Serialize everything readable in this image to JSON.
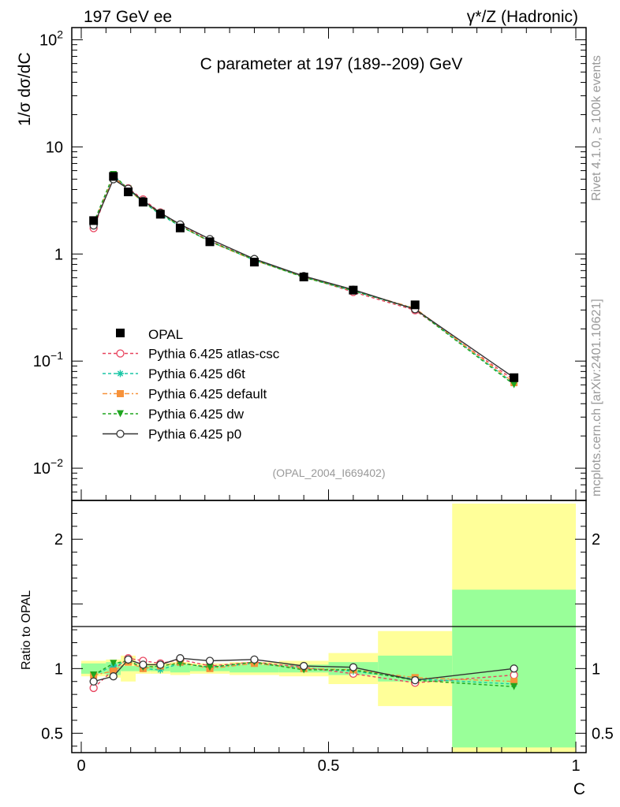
{
  "header": {
    "left": "197 GeV ee",
    "right": "γ*/Z (Hadronic)"
  },
  "side": {
    "rivet": "Rivet 4.1.0, ≥ 100k events",
    "mcplots": "mcplots.cern.ch [arXiv:2401.10621]"
  },
  "chart_data": {
    "type": "line",
    "title": "C parameter at 197 (189--209) GeV",
    "ylabel": "1/σ  dσ/dC",
    "xlabel": "C",
    "ratio_ylabel": "Ratio to OPAL",
    "watermark": "(OPAL_2004_I669402)",
    "xlim": [
      0,
      1
    ],
    "ylim": [
      0.005,
      130
    ],
    "yscale": "log",
    "ratio_ylim": [
      0.35,
      2.3
    ],
    "main_yticks": [
      {
        "label": "10",
        "sup": "2",
        "value": 100
      },
      {
        "label": "10",
        "sup": "",
        "value": 10
      },
      {
        "label": "1",
        "sup": "",
        "value": 1
      },
      {
        "label": "10",
        "sup": "−1",
        "value": 0.1
      },
      {
        "label": "10",
        "sup": "−2",
        "value": 0.01
      }
    ],
    "ratio_yticks": [
      {
        "label": "2",
        "value": 2
      },
      {
        "label": "1",
        "value": 1
      },
      {
        "label": "0.5",
        "value": 0.5
      }
    ],
    "xticks": [
      {
        "label": "0",
        "value": 0
      },
      {
        "label": "0.5",
        "value": 0.5
      },
      {
        "label": "1",
        "value": 1
      }
    ],
    "x": [
      0.025,
      0.065,
      0.095,
      0.125,
      0.16,
      0.2,
      0.26,
      0.35,
      0.45,
      0.55,
      0.675,
      0.875
    ],
    "bin_edges": [
      0.0,
      0.05,
      0.08,
      0.11,
      0.14,
      0.18,
      0.22,
      0.3,
      0.4,
      0.5,
      0.6,
      0.75,
      1.0
    ],
    "data": {
      "name": "OPAL",
      "values": [
        2.05,
        5.3,
        3.8,
        3.05,
        2.35,
        1.75,
        1.3,
        0.84,
        0.61,
        0.46,
        0.335,
        0.07
      ],
      "band_stat": [
        0.04,
        0.05,
        0.02,
        0.02,
        0.02,
        0.03,
        0.02,
        0.03,
        0.03,
        0.05,
        0.1,
        0.61
      ],
      "band_total": [
        0.06,
        0.07,
        0.1,
        0.04,
        0.04,
        0.05,
        0.04,
        0.05,
        0.06,
        0.12,
        0.29,
        1.28
      ]
    },
    "series": [
      {
        "name": "Pythia 6.425 atlas-csc",
        "color": "#e8425d",
        "dash": "4,3",
        "marker": "open-circle",
        "ratio": [
          0.85,
          0.99,
          1.08,
          1.06,
          1.04,
          1.07,
          1.02,
          1.05,
          1.01,
          0.96,
          0.89,
          0.95
        ]
      },
      {
        "name": "Pythia 6.425 d6t",
        "color": "#19c6a6",
        "dash": "4,3",
        "marker": "star",
        "ratio": [
          0.95,
          1.02,
          1.06,
          1.0,
          0.99,
          1.04,
          1.01,
          1.04,
          1.0,
          0.98,
          0.92,
          0.88
        ]
      },
      {
        "name": "Pythia 6.425 default",
        "color": "#f7923a",
        "dash": "6,3,2,3",
        "marker": "filled-square",
        "ratio": [
          0.95,
          0.98,
          1.05,
          1.0,
          1.02,
          1.05,
          1.0,
          1.04,
          1.0,
          0.99,
          0.93,
          0.9
        ]
      },
      {
        "name": "Pythia 6.425 dw",
        "color": "#1fa51f",
        "dash": "4,3",
        "marker": "filled-triangle-down",
        "ratio": [
          0.95,
          1.04,
          1.06,
          1.01,
          1.02,
          1.04,
          1.01,
          1.05,
          0.99,
          0.99,
          0.91,
          0.86
        ]
      },
      {
        "name": "Pythia 6.425 p0",
        "color": "#333333",
        "dash": "",
        "marker": "open-circle",
        "ratio": [
          0.9,
          0.94,
          1.07,
          1.03,
          1.03,
          1.08,
          1.06,
          1.07,
          1.02,
          1.01,
          0.91,
          1.0
        ]
      }
    ]
  }
}
